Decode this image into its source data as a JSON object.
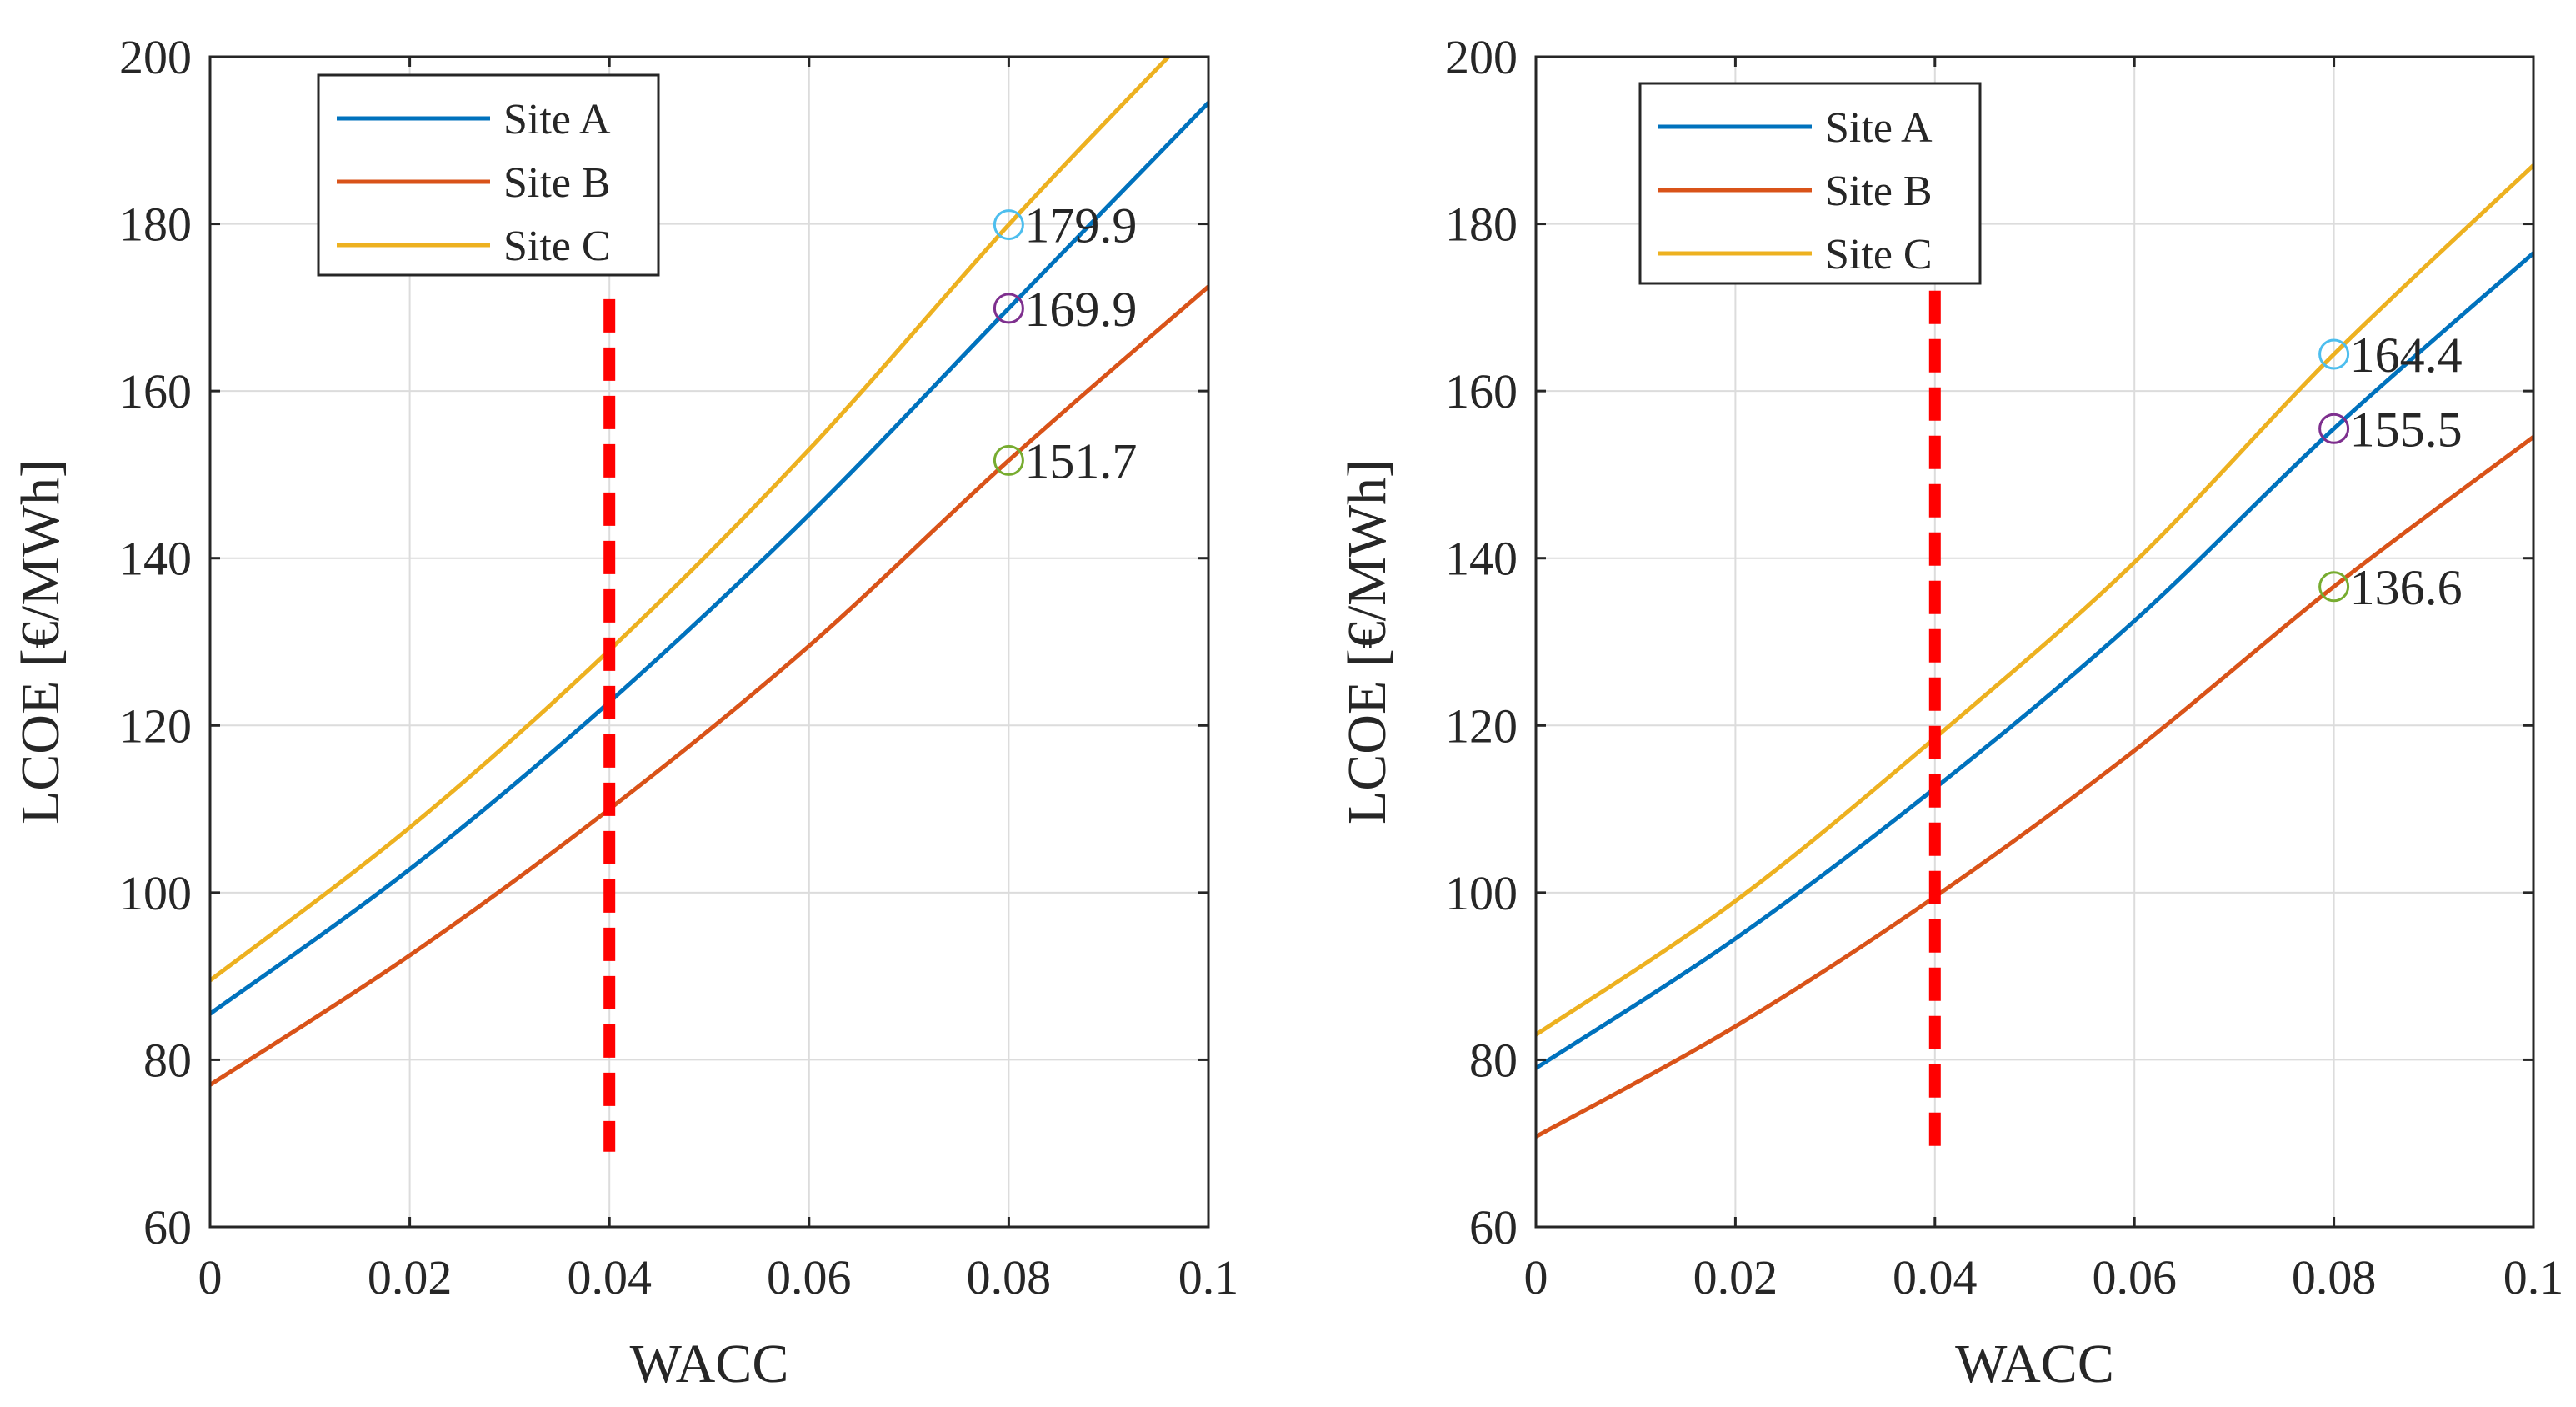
{
  "chart_data": [
    {
      "type": "line",
      "xlabel": "WACC",
      "ylabel": "LCOE [€/MWh]",
      "xlim": [
        0,
        0.1
      ],
      "ylim": [
        60,
        200
      ],
      "xticks": [
        0,
        0.02,
        0.04,
        0.06,
        0.08,
        0.1
      ],
      "xtick_labels": [
        "0",
        "0.02",
        "0.04",
        "0.06",
        "0.08",
        "0.1"
      ],
      "yticks": [
        60,
        80,
        100,
        120,
        140,
        160,
        180,
        200
      ],
      "ytick_labels": [
        "60",
        "80",
        "100",
        "120",
        "140",
        "160",
        "180",
        "200"
      ],
      "grid": true,
      "legend": "top-left",
      "series": [
        {
          "name": "Site A",
          "color": "#0072bd",
          "x": [
            0,
            0.02,
            0.04,
            0.06,
            0.08,
            0.1
          ],
          "values": [
            85.5,
            102.8,
            122.8,
            145.2,
            169.9,
            194.5
          ]
        },
        {
          "name": "Site B",
          "color": "#d95319",
          "x": [
            0,
            0.02,
            0.04,
            0.06,
            0.08,
            0.1
          ],
          "values": [
            77.0,
            92.5,
            110.0,
            129.5,
            151.7,
            172.5
          ]
        },
        {
          "name": "Site C",
          "color": "#edb120",
          "x": [
            0,
            0.02,
            0.04,
            0.06,
            0.08,
            0.096
          ],
          "values": [
            89.5,
            107.8,
            129.0,
            153.0,
            179.9,
            200.0
          ]
        }
      ],
      "vline": {
        "x": 0.04,
        "y_range": [
          69,
          171
        ],
        "color": "#ff0000"
      },
      "annotations": [
        {
          "x": 0.08,
          "y": 179.9,
          "label": "179.9",
          "marker_color": "#4dbeee"
        },
        {
          "x": 0.08,
          "y": 169.9,
          "label": "169.9",
          "marker_color": "#7e2f8e"
        },
        {
          "x": 0.08,
          "y": 151.7,
          "label": "151.7",
          "marker_color": "#77ac30"
        }
      ]
    },
    {
      "type": "line",
      "xlabel": "WACC",
      "ylabel": "LCOE [€/MWh]",
      "xlim": [
        0,
        0.1
      ],
      "ylim": [
        60,
        200
      ],
      "xticks": [
        0,
        0.02,
        0.04,
        0.06,
        0.08,
        0.1
      ],
      "xtick_labels": [
        "0",
        "0.02",
        "0.04",
        "0.06",
        "0.08",
        "0.1"
      ],
      "yticks": [
        60,
        80,
        100,
        120,
        140,
        160,
        180,
        200
      ],
      "ytick_labels": [
        "60",
        "80",
        "100",
        "120",
        "140",
        "160",
        "180",
        "200"
      ],
      "grid": true,
      "legend": "top-left",
      "series": [
        {
          "name": "Site A",
          "color": "#0072bd",
          "x": [
            0,
            0.02,
            0.04,
            0.06,
            0.08,
            0.1
          ],
          "values": [
            79.0,
            94.5,
            112.5,
            132.5,
            155.5,
            176.5
          ]
        },
        {
          "name": "Site B",
          "color": "#d95319",
          "x": [
            0,
            0.02,
            0.04,
            0.06,
            0.08,
            0.1
          ],
          "values": [
            70.8,
            84.0,
            99.5,
            117.0,
            136.6,
            154.5
          ]
        },
        {
          "name": "Site C",
          "color": "#edb120",
          "x": [
            0,
            0.02,
            0.04,
            0.06,
            0.08,
            0.1
          ],
          "values": [
            83.0,
            99.0,
            118.5,
            139.5,
            164.4,
            187.0
          ]
        }
      ],
      "vline": {
        "x": 0.04,
        "y_range": [
          68,
          172
        ],
        "color": "#ff0000"
      },
      "annotations": [
        {
          "x": 0.08,
          "y": 164.4,
          "label": "164.4",
          "marker_color": "#4dbeee"
        },
        {
          "x": 0.08,
          "y": 155.5,
          "label": "155.5",
          "marker_color": "#7e2f8e"
        },
        {
          "x": 0.08,
          "y": 136.6,
          "label": "136.6",
          "marker_color": "#77ac30"
        }
      ]
    }
  ]
}
